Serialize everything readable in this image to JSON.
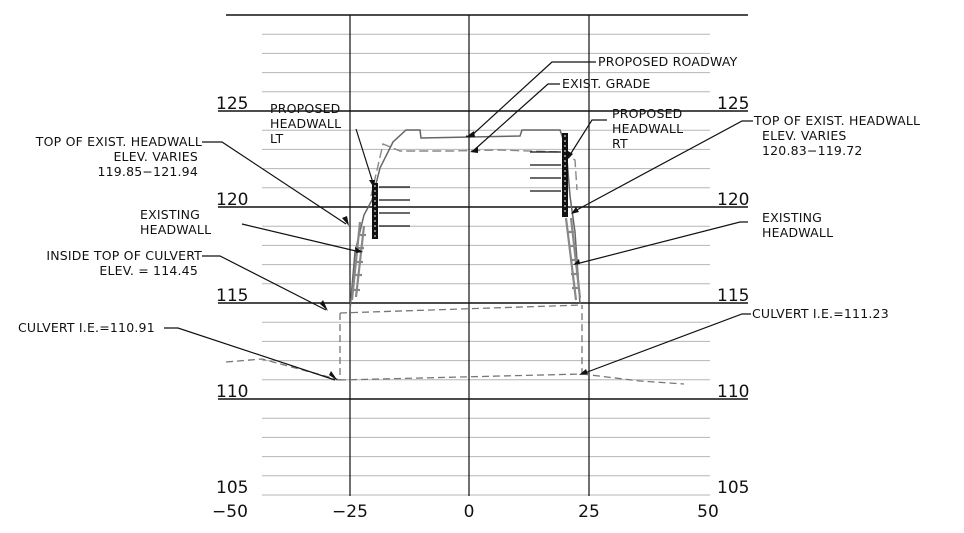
{
  "y_axis": {
    "left_ticks": [
      "125",
      "120",
      "115",
      "110",
      "105"
    ],
    "right_ticks": [
      "125",
      "120",
      "115",
      "110",
      "105"
    ]
  },
  "x_axis": {
    "ticks": [
      "−50",
      "−25",
      "0",
      "25",
      "50"
    ]
  },
  "callouts": {
    "proposed_roadway": "PROPOSED ROADWAY",
    "exist_grade": "EXIST. GRADE",
    "proposed_headwall_lt": [
      "PROPOSED",
      "HEADWALL",
      "LT"
    ],
    "proposed_headwall_rt": [
      "PROPOSED",
      "HEADWALL",
      "RT"
    ],
    "top_exist_headwall_left": [
      "TOP OF EXIST. HEADWALL",
      "ELEV. VARIES",
      "119.85−121.94"
    ],
    "top_exist_headwall_right": [
      "TOP OF EXIST. HEADWALL",
      "ELEV. VARIES",
      "120.83−119.72"
    ],
    "existing_headwall_left": [
      "EXISTING",
      "HEADWALL"
    ],
    "existing_headwall_right": [
      "EXISTING",
      "HEADWALL"
    ],
    "inside_top_culvert": [
      "INSIDE TOP OF CULVERT",
      "ELEV. = 114.45"
    ],
    "culvert_ie_left": "CULVERT I.E.=110.91",
    "culvert_ie_right": "CULVERT I.E.=111.23"
  }
}
